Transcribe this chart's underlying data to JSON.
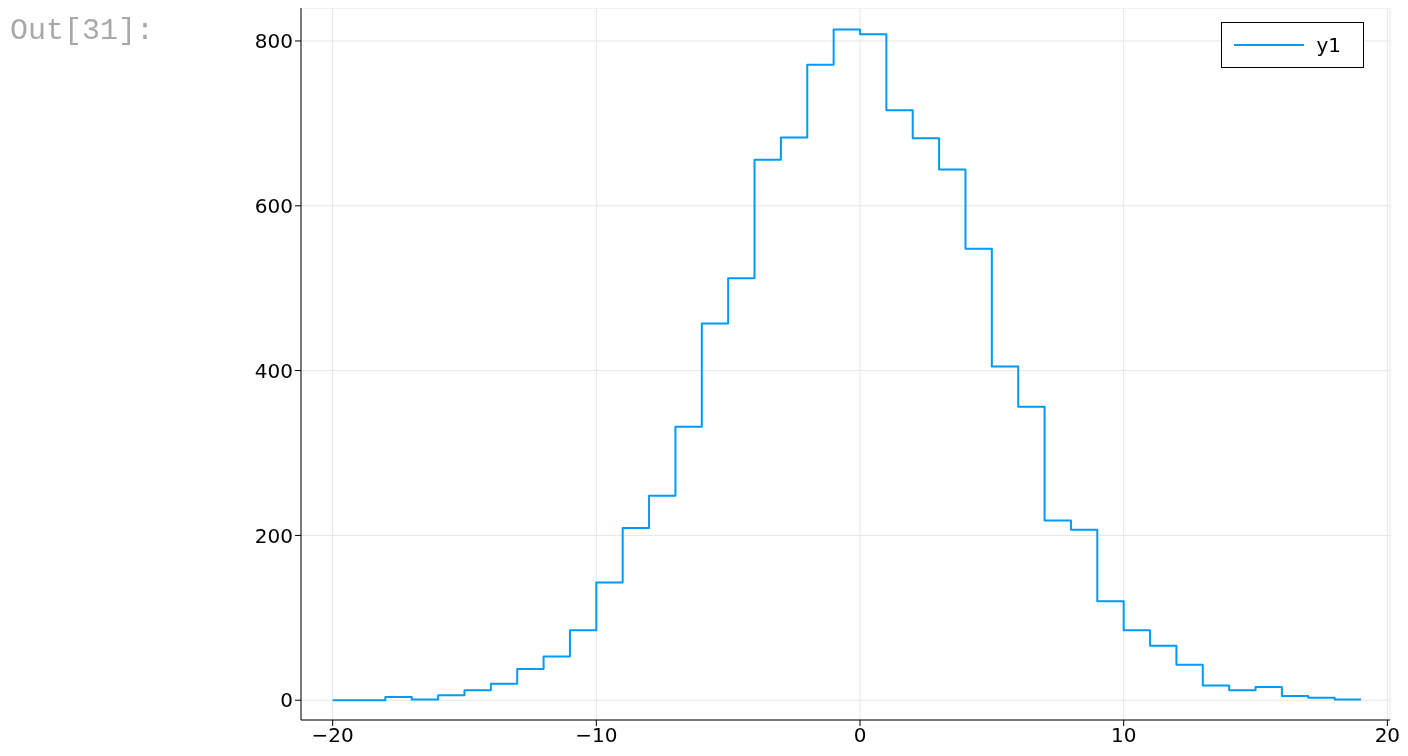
{
  "chart_data": {
    "type": "histogram",
    "bins": [
      -20,
      -19,
      -18,
      -17,
      -16,
      -15,
      -14,
      -13,
      -12,
      -11,
      -10,
      -9,
      -8,
      -7,
      -6,
      -5,
      -4,
      -3,
      -2,
      -1,
      0,
      1,
      2,
      3,
      4,
      5,
      6,
      7,
      8,
      9,
      10,
      11,
      12,
      13,
      14,
      15,
      16,
      17,
      18,
      19
    ],
    "series": [
      {
        "name": "y1",
        "color": "#009af9",
        "values": [
          0,
          0,
          4,
          1,
          6,
          12,
          20,
          38,
          53,
          85,
          143,
          209,
          248,
          332,
          457,
          512,
          656,
          683,
          771,
          814,
          808,
          716,
          682,
          644,
          548,
          405,
          356,
          218,
          207,
          120,
          85,
          66,
          43,
          18,
          12,
          16,
          5,
          3,
          1
        ]
      }
    ],
    "xlim": [
      -21.2,
      20.1
    ],
    "xticks": [
      {
        "value": -20,
        "label": "−20"
      },
      {
        "value": -10,
        "label": "−10"
      },
      0,
      10,
      20
    ],
    "ylim": [
      -24,
      840
    ],
    "yticks": [
      0,
      200,
      400,
      600,
      800
    ],
    "grid": true,
    "legend": "top right",
    "annotations": [
      "Out[31]:"
    ]
  }
}
